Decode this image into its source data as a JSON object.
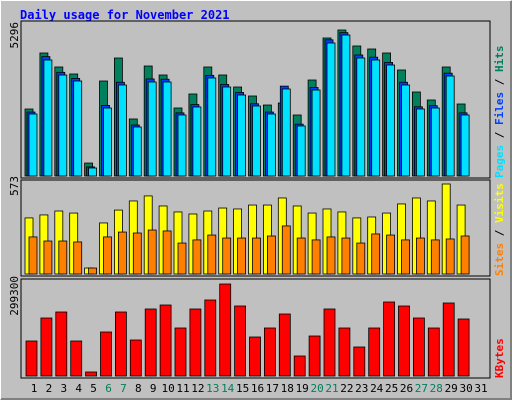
{
  "chart_data": [
    {
      "type": "bar",
      "title": "Daily usage for November 2021",
      "legend_separator": "/",
      "ylim": [
        0,
        5296
      ],
      "yticks": [
        5296
      ],
      "series": [
        {
          "name": "Hits",
          "color": "#00805c",
          "values": [
            2430,
            4462,
            3954,
            3700,
            470,
            3446,
            4280,
            2068,
            3990,
            3664,
            2467,
            2975,
            3954,
            3664,
            3228,
            2902,
            2575,
            2648,
            2213,
            3482,
            5006,
            5296,
            4716,
            4607,
            4462,
            3845,
            3047,
            2757,
            3954,
            2612,
            null
          ]
        },
        {
          "name": "Files",
          "color": "#0040ff",
          "values": [
            2320,
            4330,
            3760,
            3540,
            330,
            2560,
            3400,
            1850,
            3520,
            3510,
            2290,
            2590,
            3650,
            3320,
            3030,
            2620,
            2320,
            3260,
            1880,
            3210,
            4940,
            5200,
            4390,
            4310,
            4120,
            3400,
            2510,
            2550,
            3730,
            2290,
            null
          ]
        },
        {
          "name": "Pages",
          "color": "#00e0ff",
          "values": [
            2249,
            4208,
            3663,
            3446,
            290,
            2466,
            3301,
            1777,
            3410,
            3410,
            2213,
            2503,
            3555,
            3228,
            2938,
            2539,
            2249,
            3156,
            1814,
            3119,
            4824,
            5114,
            4280,
            4208,
            4026,
            3301,
            2430,
            2466,
            3627,
            2213,
            null
          ]
        }
      ]
    },
    {
      "type": "bar",
      "legend_separator": "/",
      "ylim": [
        0,
        573
      ],
      "yticks": [
        573
      ],
      "series": [
        {
          "name": "Visits",
          "color": "#ffff00",
          "values": [
            357,
            376,
            401,
            388,
            38,
            325,
            407,
            465,
            497,
            433,
            395,
            382,
            401,
            420,
            414,
            439,
            439,
            484,
            433,
            388,
            414,
            395,
            357,
            363,
            388,
            446,
            484,
            465,
            573,
            439,
            null
          ]
        },
        {
          "name": "Sites",
          "color": "#ff8000",
          "values": [
            236,
            210,
            210,
            204,
            38,
            236,
            267,
            261,
            280,
            274,
            197,
            217,
            248,
            229,
            229,
            229,
            242,
            306,
            229,
            217,
            236,
            229,
            197,
            255,
            248,
            217,
            229,
            217,
            223,
            242,
            null
          ]
        }
      ]
    },
    {
      "type": "bar",
      "ylim": [
        0,
        299300
      ],
      "yticks": [
        299300
      ],
      "categories": [
        "1",
        "2",
        "3",
        "4",
        "5",
        "6",
        "7",
        "8",
        "9",
        "10",
        "11",
        "12",
        "13",
        "14",
        "15",
        "16",
        "17",
        "18",
        "19",
        "20",
        "21",
        "22",
        "23",
        "24",
        "25",
        "26",
        "27",
        "28",
        "29",
        "30",
        "31"
      ],
      "category_colors": [
        "#000000",
        "#000000",
        "#000000",
        "#000000",
        "#000000",
        "#00805c",
        "#00805c",
        "#000000",
        "#000000",
        "#000000",
        "#000000",
        "#000000",
        "#00805c",
        "#00805c",
        "#000000",
        "#000000",
        "#000000",
        "#000000",
        "#000000",
        "#00805c",
        "#00805c",
        "#000000",
        "#000000",
        "#000000",
        "#000000",
        "#000000",
        "#00805c",
        "#00805c",
        "#000000",
        "#000000",
        "#000000"
      ],
      "series": [
        {
          "name": "KBytes",
          "color": "#ff0000",
          "values": [
            113864,
            188690,
            208209,
            113864,
            13013,
            143143,
            208209,
            117117,
            217969,
            230982,
            156156,
            217969,
            247248,
            299300,
            227729,
            126878,
            156156,
            201703,
            65065,
            130130,
            217969,
            156156,
            94345,
            156156,
            240741,
            227729,
            188690,
            156156,
            237488,
            185436,
            null
          ]
        }
      ]
    }
  ]
}
